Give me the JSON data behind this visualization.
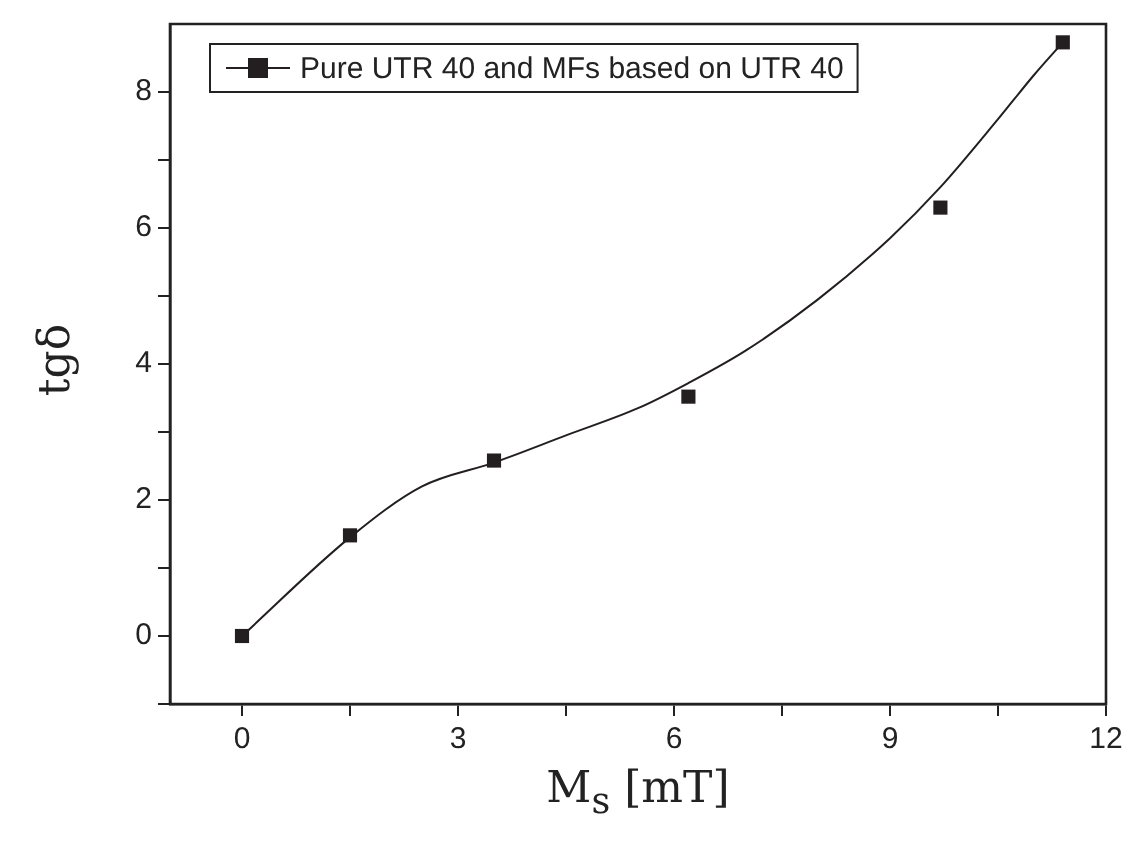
{
  "chart_data": {
    "type": "scatter",
    "xlabel": "M$_{s}$ [mT]",
    "ylabel": "tgδ",
    "xlim": [
      -1,
      12
    ],
    "ylim": [
      -1,
      9
    ],
    "xticks": [
      0,
      {
        "value": 1.5,
        "label": null
      },
      3,
      {
        "value": 4.5,
        "label": null
      },
      6,
      {
        "value": 7.5,
        "label": null
      },
      9,
      {
        "value": 10.5,
        "label": null
      },
      12
    ],
    "yticks": [
      {
        "value": -1,
        "label": null
      },
      0,
      {
        "value": 1,
        "label": null
      },
      2,
      {
        "value": 3,
        "label": null
      },
      4,
      {
        "value": 5,
        "label": null
      },
      6,
      {
        "value": 7,
        "label": null
      },
      8
    ],
    "grid": false,
    "legend": "top left",
    "series": [
      {
        "name": "Pure UTR 40 and MFs based on UTR 40",
        "marker": "square",
        "color": "#231f20",
        "x": [
          0,
          1.5,
          3.5,
          6.2,
          9.7,
          11.4
        ],
        "values": [
          0,
          1.48,
          2.58,
          3.52,
          6.3,
          8.73
        ]
      },
      {
        "type": "line",
        "marker": "none",
        "color": "#231f20",
        "line_style": "solid",
        "x": [
          0,
          1.5,
          2.5,
          3.5,
          4.5,
          5.5,
          6.2,
          7,
          8,
          9,
          9.7,
          10.5,
          11,
          11.4
        ],
        "values": [
          0,
          1.45,
          2.2,
          2.55,
          2.95,
          3.35,
          3.72,
          4.2,
          4.95,
          5.85,
          6.6,
          7.6,
          8.25,
          8.73
        ]
      }
    ]
  }
}
